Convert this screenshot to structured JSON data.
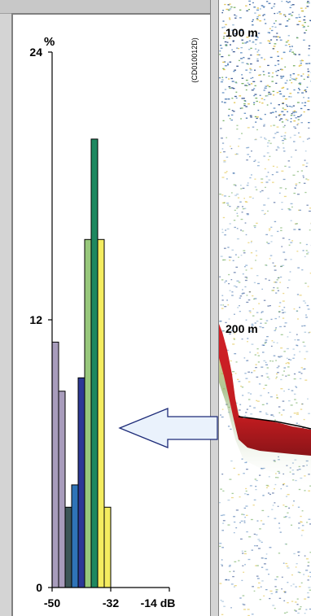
{
  "chart_data": {
    "type": "bar",
    "ylabel": "%",
    "xunit": "dB",
    "xticks": [
      "-50",
      "-32",
      "-14 dB"
    ],
    "yticks": [
      "0",
      "12",
      "24"
    ],
    "xlim": [
      -50,
      -14
    ],
    "ylim": [
      0,
      24
    ],
    "bin_width_db": 2,
    "bars": [
      {
        "x_start": -50,
        "value": 11.0,
        "color": "#a89cbc"
      },
      {
        "x_start": -48,
        "value": 8.8,
        "color": "#a89cbc"
      },
      {
        "x_start": -46,
        "value": 3.6,
        "color": "#3d5658"
      },
      {
        "x_start": -44,
        "value": 4.6,
        "color": "#2f74b8"
      },
      {
        "x_start": -42,
        "value": 9.4,
        "color": "#2c3896"
      },
      {
        "x_start": -40,
        "value": 15.6,
        "color": "#98c87c"
      },
      {
        "x_start": -38,
        "value": 20.1,
        "color": "#1e8860"
      },
      {
        "x_start": -36,
        "value": 15.6,
        "color": "#f4ec60"
      },
      {
        "x_start": -34,
        "value": 3.6,
        "color": "#f4ec60"
      }
    ]
  },
  "figure_id": "(CD010012D)",
  "echogram": {
    "depth_labels": [
      "100 m",
      "200 m"
    ]
  },
  "colors": {
    "arrow_fill": "#eaf2fc",
    "arrow_stroke": "#1c2a78",
    "echo_red": "#c41e22"
  }
}
